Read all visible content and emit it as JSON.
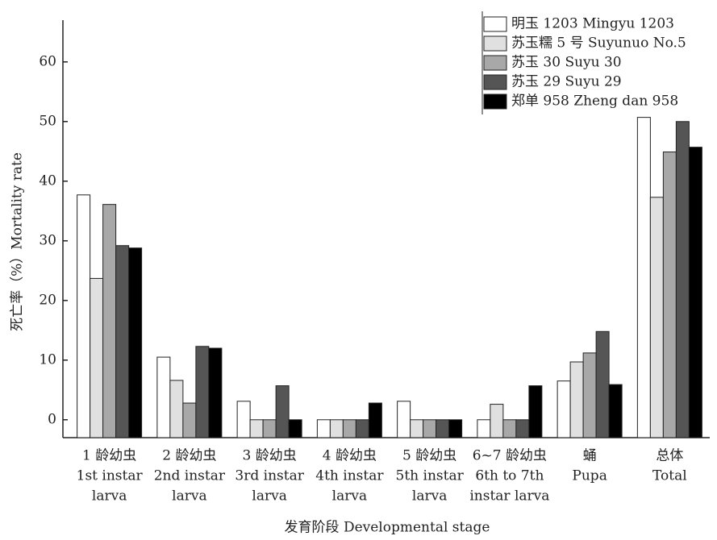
{
  "chart_data": {
    "type": "grouped-bar",
    "y_label": "死亡率（%）Mortality rate",
    "x_label": "发育阶段 Developmental stage",
    "categories": [
      [
        "1 龄幼虫",
        "1st instar",
        "larva"
      ],
      [
        "2 龄幼虫",
        "2nd instar",
        "larva"
      ],
      [
        "3 龄幼虫",
        "3rd instar",
        "larva"
      ],
      [
        "4 龄幼虫",
        "4th instar",
        "larva"
      ],
      [
        "5 龄幼虫",
        "5th instar",
        "larva"
      ],
      [
        "6~7 龄幼虫",
        "6th to 7th",
        "instar  larva"
      ],
      [
        "蛹",
        "Pupa"
      ],
      [
        "总体",
        "Total"
      ]
    ],
    "series": [
      {
        "name": "明玉 1203 Mingyu 1203",
        "color": "#ffffff",
        "values": [
          37.7,
          10.5,
          3.1,
          0,
          3.1,
          0,
          6.5,
          50.7
        ]
      },
      {
        "name": "苏玉糯 5 号 Suyunuo No.5",
        "color": "#e0e0e0",
        "values": [
          23.7,
          6.6,
          0,
          0,
          0,
          2.6,
          9.7,
          37.3
        ]
      },
      {
        "name": "苏玉 30 Suyu 30",
        "color": "#a8a8a8",
        "values": [
          36.1,
          2.8,
          0,
          0,
          0,
          0,
          11.2,
          44.9
        ]
      },
      {
        "name": "苏玉 29 Suyu 29",
        "color": "#555555",
        "values": [
          29.2,
          12.3,
          5.7,
          0,
          0,
          0,
          14.8,
          50.0
        ]
      },
      {
        "name": "郑单 958 Zheng dan 958",
        "color": "#000000",
        "values": [
          28.8,
          12.0,
          0,
          2.8,
          0,
          5.7,
          5.9,
          45.7
        ]
      }
    ],
    "ylim": [
      -3,
      67
    ],
    "yticks": [
      0,
      10,
      20,
      30,
      40,
      50,
      60
    ],
    "legend": "top-right"
  }
}
